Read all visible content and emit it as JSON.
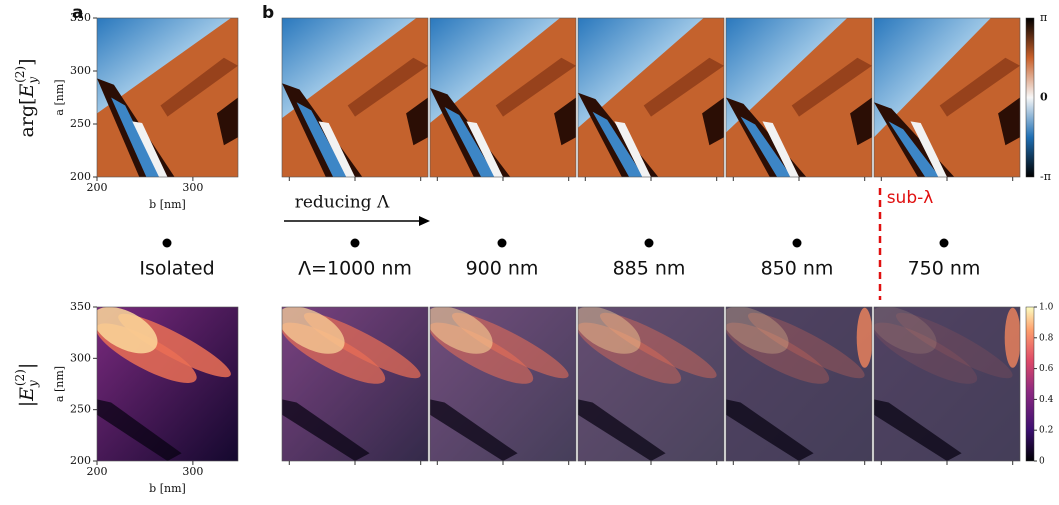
{
  "panel_labels": [
    "a",
    "b"
  ],
  "row_labels": {
    "phase": {
      "prefix": "arg[",
      "symbol": "E",
      "sub": "y",
      "sup": "(2)",
      "suffix": "]"
    },
    "magnitude": {
      "prefix": "|",
      "symbol": "E",
      "sub": "y",
      "sup": "(2)",
      "suffix": "|"
    }
  },
  "axes": {
    "y_label": "a [nm]",
    "x_label": "b [nm]",
    "y_ticks": [
      "350",
      "300",
      "250",
      "200"
    ],
    "x_ticks": [
      "200",
      "300"
    ]
  },
  "phase_colorbar_ticks": [
    "π",
    "0",
    "-π"
  ],
  "magnitude_colorbar_ticks": [
    "1.0",
    "0.8",
    "0.6",
    "0.4",
    "0.2",
    "0"
  ],
  "arrow_label": "reducing Λ",
  "sub_label": "sub-λ",
  "cases": [
    "Isolated",
    "Λ=1000 nm",
    "900 nm",
    "885 nm",
    "850 nm",
    "750 nm"
  ]
}
